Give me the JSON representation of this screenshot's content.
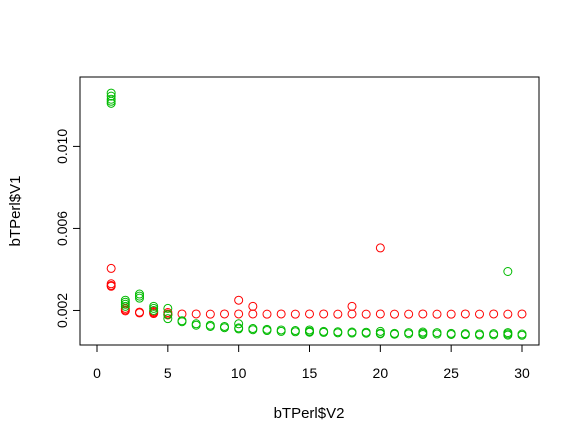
{
  "chart_data": {
    "type": "scatter",
    "title": "",
    "xlabel": "bTPerl$V2",
    "ylabel": "bTPerl$V1",
    "xlim": [
      0,
      30
    ],
    "ylim": [
      0.0008,
      0.0129
    ],
    "xticks": [
      0,
      5,
      10,
      15,
      20,
      25,
      30
    ],
    "yticks": [
      0.002,
      0.006,
      0.01
    ],
    "xtick_labels": [
      "0",
      "5",
      "10",
      "15",
      "20",
      "25",
      "30"
    ],
    "ytick_labels": [
      "0.002",
      "0.006",
      "0.010"
    ],
    "grid": false,
    "legend": "none",
    "series": [
      {
        "color": "#ff0000",
        "points": [
          [
            1,
            0.00405
          ],
          [
            1,
            0.0033
          ],
          [
            1,
            0.00318
          ],
          [
            1,
            0.00322
          ],
          [
            2,
            0.0021
          ],
          [
            2,
            0.00198
          ],
          [
            2,
            0.00203
          ],
          [
            3,
            0.00188
          ],
          [
            3,
            0.00192
          ],
          [
            4,
            0.00185
          ],
          [
            4,
            0.00195
          ],
          [
            4,
            0.0019
          ],
          [
            5,
            0.00183
          ],
          [
            5,
            0.00178
          ],
          [
            5,
            0.0019
          ],
          [
            6,
            0.00183
          ],
          [
            7,
            0.00183
          ],
          [
            8,
            0.00182
          ],
          [
            9,
            0.00183
          ],
          [
            10,
            0.00183
          ],
          [
            10,
            0.0025
          ],
          [
            11,
            0.00183
          ],
          [
            11,
            0.0022
          ],
          [
            12,
            0.00182
          ],
          [
            13,
            0.00183
          ],
          [
            14,
            0.00182
          ],
          [
            15,
            0.00183
          ],
          [
            16,
            0.00183
          ],
          [
            17,
            0.00182
          ],
          [
            18,
            0.00183
          ],
          [
            18,
            0.0022
          ],
          [
            19,
            0.00182
          ],
          [
            20,
            0.00183
          ],
          [
            20,
            0.00505
          ],
          [
            21,
            0.00182
          ],
          [
            22,
            0.00182
          ],
          [
            23,
            0.00183
          ],
          [
            24,
            0.00182
          ],
          [
            25,
            0.00182
          ],
          [
            26,
            0.00183
          ],
          [
            27,
            0.00182
          ],
          [
            28,
            0.00183
          ],
          [
            29,
            0.00182
          ],
          [
            30,
            0.00183
          ]
        ]
      },
      {
        "color": "#00bb00",
        "points": [
          [
            1,
            0.0126
          ],
          [
            1,
            0.01245
          ],
          [
            1,
            0.0123
          ],
          [
            1,
            0.0122
          ],
          [
            1,
            0.0121
          ],
          [
            2,
            0.0025
          ],
          [
            2,
            0.0024
          ],
          [
            2,
            0.0023
          ],
          [
            2,
            0.0022
          ],
          [
            3,
            0.0028
          ],
          [
            3,
            0.0027
          ],
          [
            3,
            0.0026
          ],
          [
            4,
            0.0022
          ],
          [
            4,
            0.0021
          ],
          [
            4,
            0.002
          ],
          [
            5,
            0.0021
          ],
          [
            5,
            0.0018
          ],
          [
            5,
            0.0016
          ],
          [
            6,
            0.0015
          ],
          [
            6,
            0.00145
          ],
          [
            7,
            0.00135
          ],
          [
            7,
            0.00128
          ],
          [
            8,
            0.00128
          ],
          [
            8,
            0.00122
          ],
          [
            9,
            0.00122
          ],
          [
            9,
            0.00116
          ],
          [
            10,
            0.00135
          ],
          [
            10,
            0.00115
          ],
          [
            10,
            0.0011
          ],
          [
            11,
            0.00112
          ],
          [
            11,
            0.00106
          ],
          [
            12,
            0.00108
          ],
          [
            12,
            0.00102
          ],
          [
            13,
            0.00105
          ],
          [
            13,
            0.00098
          ],
          [
            14,
            0.00102
          ],
          [
            14,
            0.00096
          ],
          [
            15,
            0.00105
          ],
          [
            15,
            0.00098
          ],
          [
            15,
            0.00094
          ],
          [
            16,
            0.00098
          ],
          [
            16,
            0.00093
          ],
          [
            17,
            0.00096
          ],
          [
            17,
            0.00091
          ],
          [
            18,
            0.00095
          ],
          [
            18,
            0.0009
          ],
          [
            19,
            0.00094
          ],
          [
            19,
            0.00089
          ],
          [
            20,
            0.00098
          ],
          [
            20,
            0.00089
          ],
          [
            20,
            0.00086
          ],
          [
            21,
            0.00088
          ],
          [
            21,
            0.00084
          ],
          [
            22,
            0.00092
          ],
          [
            22,
            0.00086
          ],
          [
            23,
            0.00095
          ],
          [
            23,
            0.00089
          ],
          [
            23,
            0.00083
          ],
          [
            24,
            0.00092
          ],
          [
            24,
            0.00085
          ],
          [
            25,
            0.00088
          ],
          [
            25,
            0.00083
          ],
          [
            26,
            0.00087
          ],
          [
            26,
            0.00082
          ],
          [
            27,
            0.00086
          ],
          [
            27,
            0.0008
          ],
          [
            28,
            0.00087
          ],
          [
            28,
            0.00081
          ],
          [
            29,
            0.0039
          ],
          [
            29,
            0.00092
          ],
          [
            29,
            0.00086
          ],
          [
            29,
            0.0008
          ],
          [
            30,
            0.00085
          ],
          [
            30,
            0.00079
          ]
        ]
      }
    ]
  }
}
